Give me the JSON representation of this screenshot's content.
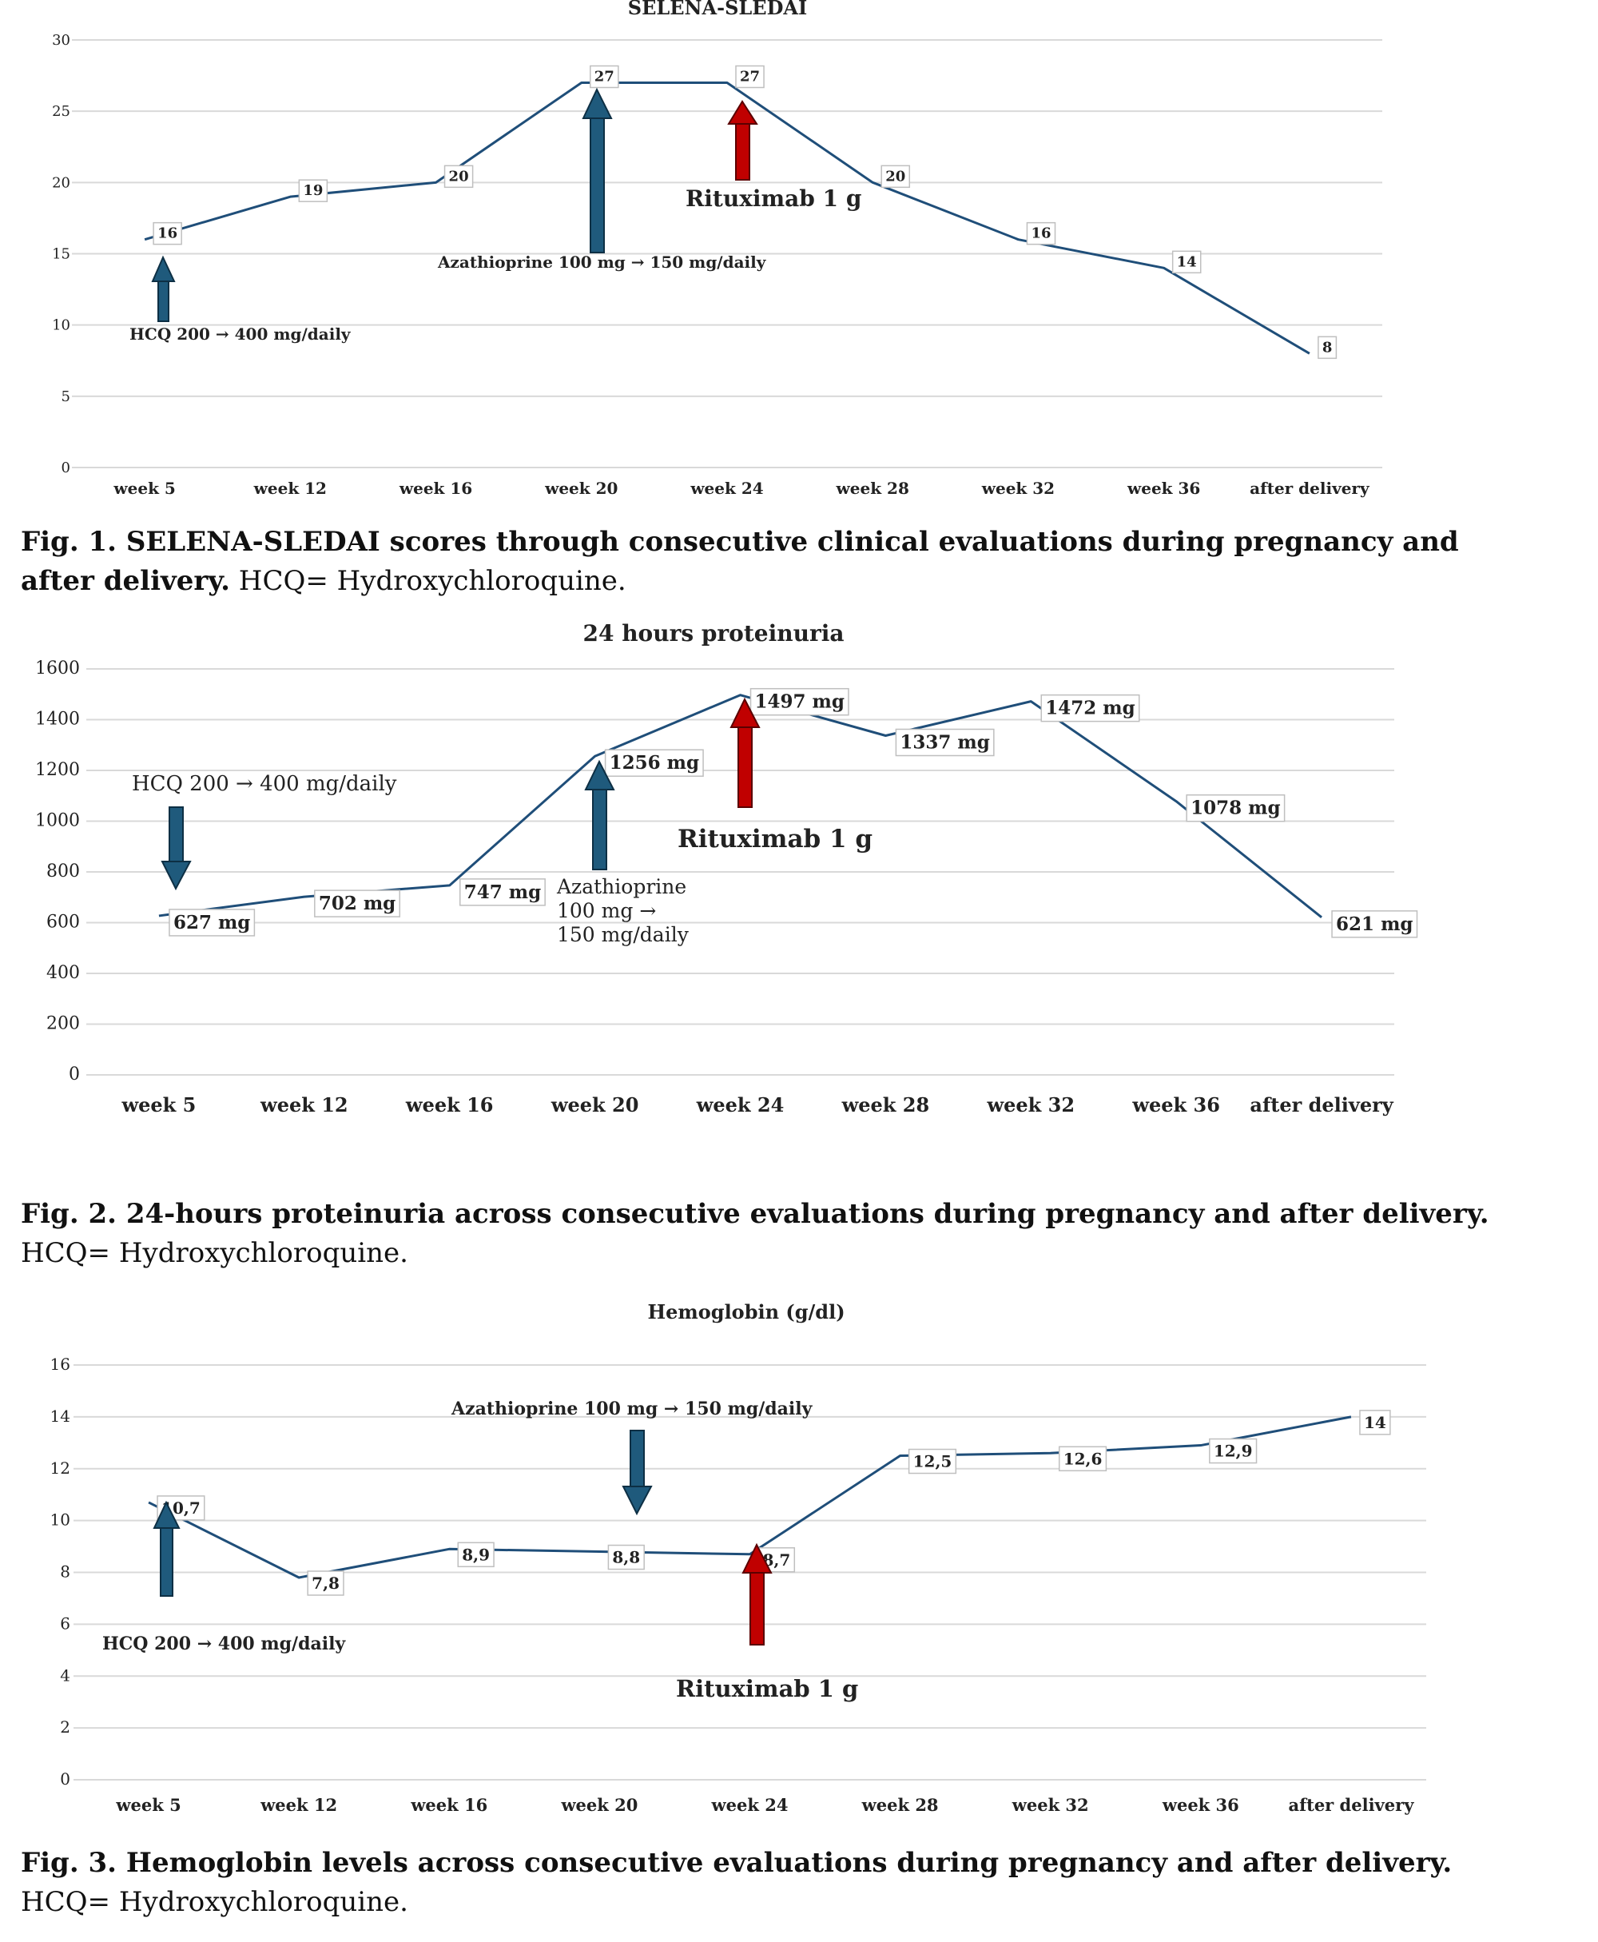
{
  "colors": {
    "line": "#1f4e79",
    "arrow_blue": "#1f5a7c",
    "arrow_red": "#c00000",
    "grid": "#d9d9d9"
  },
  "chart_data": [
    {
      "type": "line",
      "title": "SELENA-SLEDAI",
      "categories": [
        "week 5",
        "week 12",
        "week 16",
        "week 20",
        "week 24",
        "week 28",
        "week 32",
        "week 36",
        "after delivery"
      ],
      "series": [
        {
          "name": "SELENA-SLEDAI",
          "values": [
            16,
            19,
            20,
            27,
            27,
            20,
            16,
            14,
            8
          ]
        }
      ],
      "data_labels": [
        "16",
        "19",
        "20",
        "27",
        "27",
        "20",
        "16",
        "14",
        "8"
      ],
      "yticks": [
        "0",
        "5",
        "10",
        "15",
        "20",
        "25",
        "30"
      ],
      "ylim": [
        0,
        30
      ],
      "annotations": [
        {
          "text": "HCQ 200 → 400 mg/daily",
          "color": "blue",
          "direction": "up",
          "category_index": 0
        },
        {
          "text": "Azathioprine 100 mg → 150 mg/daily",
          "color": "blue",
          "direction": "up",
          "category_index": 3
        },
        {
          "text": "Rituximab 1 g",
          "color": "red",
          "direction": "up",
          "category_index": 4
        }
      ],
      "caption_bold": "Fig. 1. SELENA-SLEDAI scores through consecutive clinical evaluations during pregnancy and after delivery.",
      "caption_rest": "HCQ= Hydroxychloroquine."
    },
    {
      "type": "line",
      "title": "24 hours proteinuria",
      "categories": [
        "week 5",
        "week 12",
        "week 16",
        "week 20",
        "week 24",
        "week 28",
        "week 32",
        "week 36",
        "after delivery"
      ],
      "series": [
        {
          "name": "24 hours proteinuria",
          "values": [
            627,
            702,
            747,
            1256,
            1497,
            1337,
            1472,
            1078,
            621
          ]
        }
      ],
      "data_labels": [
        "627 mg",
        "702 mg",
        "747 mg",
        "1256 mg",
        "1497 mg",
        "1337 mg",
        "1472 mg",
        "1078 mg",
        "621 mg"
      ],
      "yticks": [
        "0",
        "200",
        "400",
        "600",
        "800",
        "1000",
        "1200",
        "1400",
        "1600"
      ],
      "ylim": [
        0,
        1600
      ],
      "annotations": [
        {
          "text": "HCQ 200 → 400 mg/daily",
          "color": "blue",
          "direction": "down",
          "category_index": 0
        },
        {
          "text": "Azathioprine 100 mg → 150 mg/daily",
          "color": "blue",
          "direction": "up",
          "category_index": 3
        },
        {
          "text": "Rituximab 1 g",
          "color": "red",
          "direction": "up",
          "category_index": 4
        }
      ],
      "caption_bold": "Fig. 2. 24-hours proteinuria across consecutive evaluations during pregnancy and after delivery.",
      "caption_rest": "HCQ= Hydroxychloroquine."
    },
    {
      "type": "line",
      "title": "Hemoglobin (g/dl)",
      "categories": [
        "week 5",
        "week 12",
        "week 16",
        "week 20",
        "week 24",
        "week 28",
        "week 32",
        "week 36",
        "after delivery"
      ],
      "series": [
        {
          "name": "Hemoglobin (g/dl)",
          "values": [
            10.7,
            7.8,
            8.9,
            8.8,
            8.7,
            12.5,
            12.6,
            12.9,
            14
          ]
        }
      ],
      "data_labels": [
        "10,7",
        "7,8",
        "8,9",
        "8,8",
        "8,7",
        "12,5",
        "12,6",
        "12,9",
        "14"
      ],
      "yticks": [
        "0",
        "2",
        "4",
        "6",
        "8",
        "10",
        "12",
        "14",
        "16"
      ],
      "ylim": [
        0,
        16
      ],
      "annotations": [
        {
          "text": "HCQ 200 → 400 mg/daily",
          "color": "blue",
          "direction": "up",
          "category_index": 0
        },
        {
          "text": "Azathioprine 100 mg → 150 mg/daily",
          "color": "blue",
          "direction": "down",
          "category_index": 3
        },
        {
          "text": "Rituximab 1 g",
          "color": "red",
          "direction": "up",
          "category_index": 4
        }
      ],
      "caption_bold": "Fig. 3. Hemoglobin levels across consecutive evaluations during pregnancy and after delivery.",
      "caption_rest": "HCQ= Hydroxychloroquine."
    }
  ]
}
